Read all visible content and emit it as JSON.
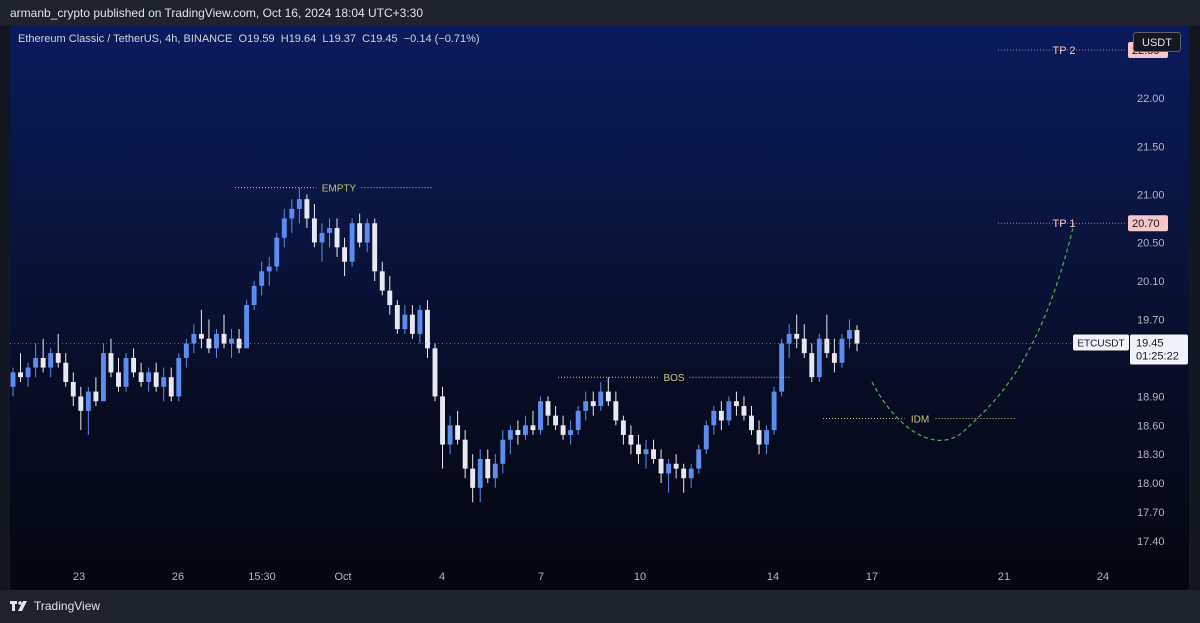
{
  "header": {
    "publisher": "armanb_crypto published on TradingView.com, Oct 16, 2024 18:04 UTC+3:30"
  },
  "legend": {
    "symbol": "Ethereum Classic / TetherUS, 4h, BINANCE",
    "o_label": "O",
    "o": "19.59",
    "h_label": "H",
    "h": "19.64",
    "l_label": "L",
    "l": "19.37",
    "c_label": "C",
    "c": "19.45",
    "change": "−0.14 (−0.71%)"
  },
  "currency": "USDT",
  "footer": {
    "brand": "TradingView"
  },
  "colors": {
    "up": "#5b8def",
    "down": "#e8e8f0",
    "annotation": "#c9c27a",
    "target_tag": "#f7c6c6",
    "projection": "#4caf50"
  },
  "chart_data": {
    "type": "candlestick",
    "symbol": "ETCUSDT",
    "timeframe": "4h",
    "y_range": [
      17.2,
      22.75
    ],
    "y_ticks": [
      "22.00",
      "21.50",
      "21.00",
      "20.50",
      "20.10",
      "19.70",
      "18.90",
      "18.60",
      "18.30",
      "18.00",
      "17.70",
      "17.40"
    ],
    "x_ticks": [
      "23",
      "26",
      "15:30",
      "Oct",
      "4",
      "7",
      "10",
      "14",
      "17",
      "21",
      "24"
    ],
    "last_price": {
      "label": "ETCUSDT",
      "value": "19.45",
      "countdown": "01:25:22"
    },
    "targets": [
      {
        "label": "TP 2",
        "value": "22.50"
      },
      {
        "label": "TP 1",
        "value": "20.70"
      }
    ],
    "annotations": [
      {
        "label": "EMPTY",
        "level": 21.07
      },
      {
        "label": "BOS",
        "level": 19.1
      },
      {
        "label": "IDM",
        "level": 18.67
      }
    ],
    "candles": [
      [
        19.0,
        19.2,
        18.9,
        19.15
      ],
      [
        19.15,
        19.35,
        19.05,
        19.1
      ],
      [
        19.1,
        19.25,
        19.0,
        19.2
      ],
      [
        19.2,
        19.45,
        19.1,
        19.3
      ],
      [
        19.3,
        19.5,
        19.15,
        19.2
      ],
      [
        19.2,
        19.4,
        19.1,
        19.35
      ],
      [
        19.35,
        19.55,
        19.2,
        19.25
      ],
      [
        19.25,
        19.35,
        19.0,
        19.05
      ],
      [
        19.05,
        19.15,
        18.8,
        18.9
      ],
      [
        18.9,
        19.0,
        18.55,
        18.75
      ],
      [
        18.75,
        19.0,
        18.5,
        18.95
      ],
      [
        18.95,
        19.1,
        18.8,
        18.85
      ],
      [
        18.85,
        19.45,
        18.85,
        19.35
      ],
      [
        19.35,
        19.5,
        19.1,
        19.15
      ],
      [
        19.15,
        19.3,
        18.95,
        19.0
      ],
      [
        19.0,
        19.35,
        18.95,
        19.3
      ],
      [
        19.3,
        19.4,
        19.1,
        19.15
      ],
      [
        19.15,
        19.25,
        19.0,
        19.05
      ],
      [
        19.05,
        19.2,
        18.95,
        19.15
      ],
      [
        19.15,
        19.25,
        18.95,
        19.0
      ],
      [
        19.0,
        19.2,
        18.85,
        19.1
      ],
      [
        19.1,
        19.2,
        18.85,
        18.9
      ],
      [
        18.9,
        19.35,
        18.85,
        19.3
      ],
      [
        19.3,
        19.5,
        19.2,
        19.45
      ],
      [
        19.45,
        19.65,
        19.35,
        19.55
      ],
      [
        19.55,
        19.8,
        19.4,
        19.5
      ],
      [
        19.5,
        19.7,
        19.35,
        19.4
      ],
      [
        19.4,
        19.6,
        19.3,
        19.55
      ],
      [
        19.55,
        19.75,
        19.4,
        19.45
      ],
      [
        19.45,
        19.6,
        19.3,
        19.5
      ],
      [
        19.5,
        19.6,
        19.35,
        19.4
      ],
      [
        19.4,
        19.9,
        19.4,
        19.85
      ],
      [
        19.85,
        20.1,
        19.8,
        20.05
      ],
      [
        20.05,
        20.3,
        19.95,
        20.2
      ],
      [
        20.2,
        20.35,
        20.05,
        20.25
      ],
      [
        20.25,
        20.6,
        20.2,
        20.55
      ],
      [
        20.55,
        20.85,
        20.45,
        20.75
      ],
      [
        20.75,
        20.95,
        20.6,
        20.85
      ],
      [
        20.85,
        21.07,
        20.7,
        20.95
      ],
      [
        20.95,
        21.0,
        20.65,
        20.75
      ],
      [
        20.75,
        20.9,
        20.45,
        20.5
      ],
      [
        20.5,
        20.7,
        20.3,
        20.6
      ],
      [
        20.6,
        20.75,
        20.45,
        20.65
      ],
      [
        20.65,
        20.75,
        20.35,
        20.45
      ],
      [
        20.45,
        20.55,
        20.15,
        20.3
      ],
      [
        20.3,
        20.75,
        20.25,
        20.7
      ],
      [
        20.7,
        20.8,
        20.45,
        20.5
      ],
      [
        20.5,
        20.75,
        20.4,
        20.7
      ],
      [
        20.7,
        20.75,
        20.1,
        20.2
      ],
      [
        20.2,
        20.3,
        19.95,
        20.0
      ],
      [
        20.0,
        20.15,
        19.75,
        19.85
      ],
      [
        19.85,
        19.9,
        19.55,
        19.6
      ],
      [
        19.6,
        19.85,
        19.55,
        19.75
      ],
      [
        19.75,
        19.85,
        19.5,
        19.55
      ],
      [
        19.55,
        19.85,
        19.45,
        19.8
      ],
      [
        19.8,
        19.9,
        19.3,
        19.4
      ],
      [
        19.4,
        19.45,
        18.85,
        18.9
      ],
      [
        18.9,
        19.0,
        18.15,
        18.4
      ],
      [
        18.4,
        18.7,
        18.3,
        18.6
      ],
      [
        18.6,
        18.75,
        18.4,
        18.45
      ],
      [
        18.45,
        18.55,
        18.05,
        18.15
      ],
      [
        18.15,
        18.3,
        17.8,
        17.95
      ],
      [
        17.95,
        18.35,
        17.8,
        18.25
      ],
      [
        18.25,
        18.35,
        18.0,
        18.05
      ],
      [
        18.05,
        18.3,
        17.95,
        18.2
      ],
      [
        18.2,
        18.55,
        18.1,
        18.45
      ],
      [
        18.45,
        18.6,
        18.3,
        18.55
      ],
      [
        18.55,
        18.65,
        18.4,
        18.5
      ],
      [
        18.5,
        18.7,
        18.45,
        18.6
      ],
      [
        18.6,
        18.75,
        18.5,
        18.55
      ],
      [
        18.55,
        18.9,
        18.5,
        18.85
      ],
      [
        18.85,
        18.9,
        18.6,
        18.7
      ],
      [
        18.7,
        18.8,
        18.55,
        18.6
      ],
      [
        18.6,
        18.7,
        18.45,
        18.5
      ],
      [
        18.5,
        18.65,
        18.4,
        18.55
      ],
      [
        18.55,
        18.8,
        18.5,
        18.75
      ],
      [
        18.75,
        18.95,
        18.65,
        18.85
      ],
      [
        18.85,
        18.95,
        18.7,
        18.8
      ],
      [
        18.8,
        19.05,
        18.75,
        18.95
      ],
      [
        18.95,
        19.1,
        18.8,
        18.85
      ],
      [
        18.85,
        18.95,
        18.6,
        18.65
      ],
      [
        18.65,
        18.7,
        18.4,
        18.5
      ],
      [
        18.5,
        18.6,
        18.3,
        18.4
      ],
      [
        18.4,
        18.5,
        18.2,
        18.3
      ],
      [
        18.3,
        18.45,
        18.15,
        18.35
      ],
      [
        18.35,
        18.45,
        18.2,
        18.25
      ],
      [
        18.25,
        18.35,
        18.0,
        18.1
      ],
      [
        18.1,
        18.25,
        17.9,
        18.2
      ],
      [
        18.2,
        18.3,
        18.05,
        18.15
      ],
      [
        18.15,
        18.2,
        17.9,
        18.05
      ],
      [
        18.05,
        18.2,
        17.95,
        18.15
      ],
      [
        18.15,
        18.4,
        18.1,
        18.35
      ],
      [
        18.35,
        18.65,
        18.3,
        18.6
      ],
      [
        18.6,
        18.8,
        18.5,
        18.75
      ],
      [
        18.75,
        18.85,
        18.55,
        18.65
      ],
      [
        18.65,
        18.9,
        18.6,
        18.85
      ],
      [
        18.85,
        18.95,
        18.7,
        18.8
      ],
      [
        18.8,
        18.9,
        18.65,
        18.7
      ],
      [
        18.7,
        18.8,
        18.5,
        18.55
      ],
      [
        18.55,
        18.65,
        18.3,
        18.4
      ],
      [
        18.4,
        18.6,
        18.3,
        18.55
      ],
      [
        18.55,
        19.0,
        18.5,
        18.95
      ],
      [
        18.95,
        19.5,
        18.9,
        19.45
      ],
      [
        19.45,
        19.65,
        19.3,
        19.55
      ],
      [
        19.55,
        19.75,
        19.4,
        19.5
      ],
      [
        19.5,
        19.65,
        19.3,
        19.35
      ],
      [
        19.35,
        19.45,
        19.05,
        19.1
      ],
      [
        19.1,
        19.55,
        19.05,
        19.5
      ],
      [
        19.5,
        19.75,
        19.3,
        19.35
      ],
      [
        19.35,
        19.5,
        19.15,
        19.25
      ],
      [
        19.25,
        19.55,
        19.2,
        19.5
      ],
      [
        19.5,
        19.7,
        19.4,
        19.59
      ],
      [
        19.59,
        19.64,
        19.37,
        19.45
      ]
    ]
  }
}
